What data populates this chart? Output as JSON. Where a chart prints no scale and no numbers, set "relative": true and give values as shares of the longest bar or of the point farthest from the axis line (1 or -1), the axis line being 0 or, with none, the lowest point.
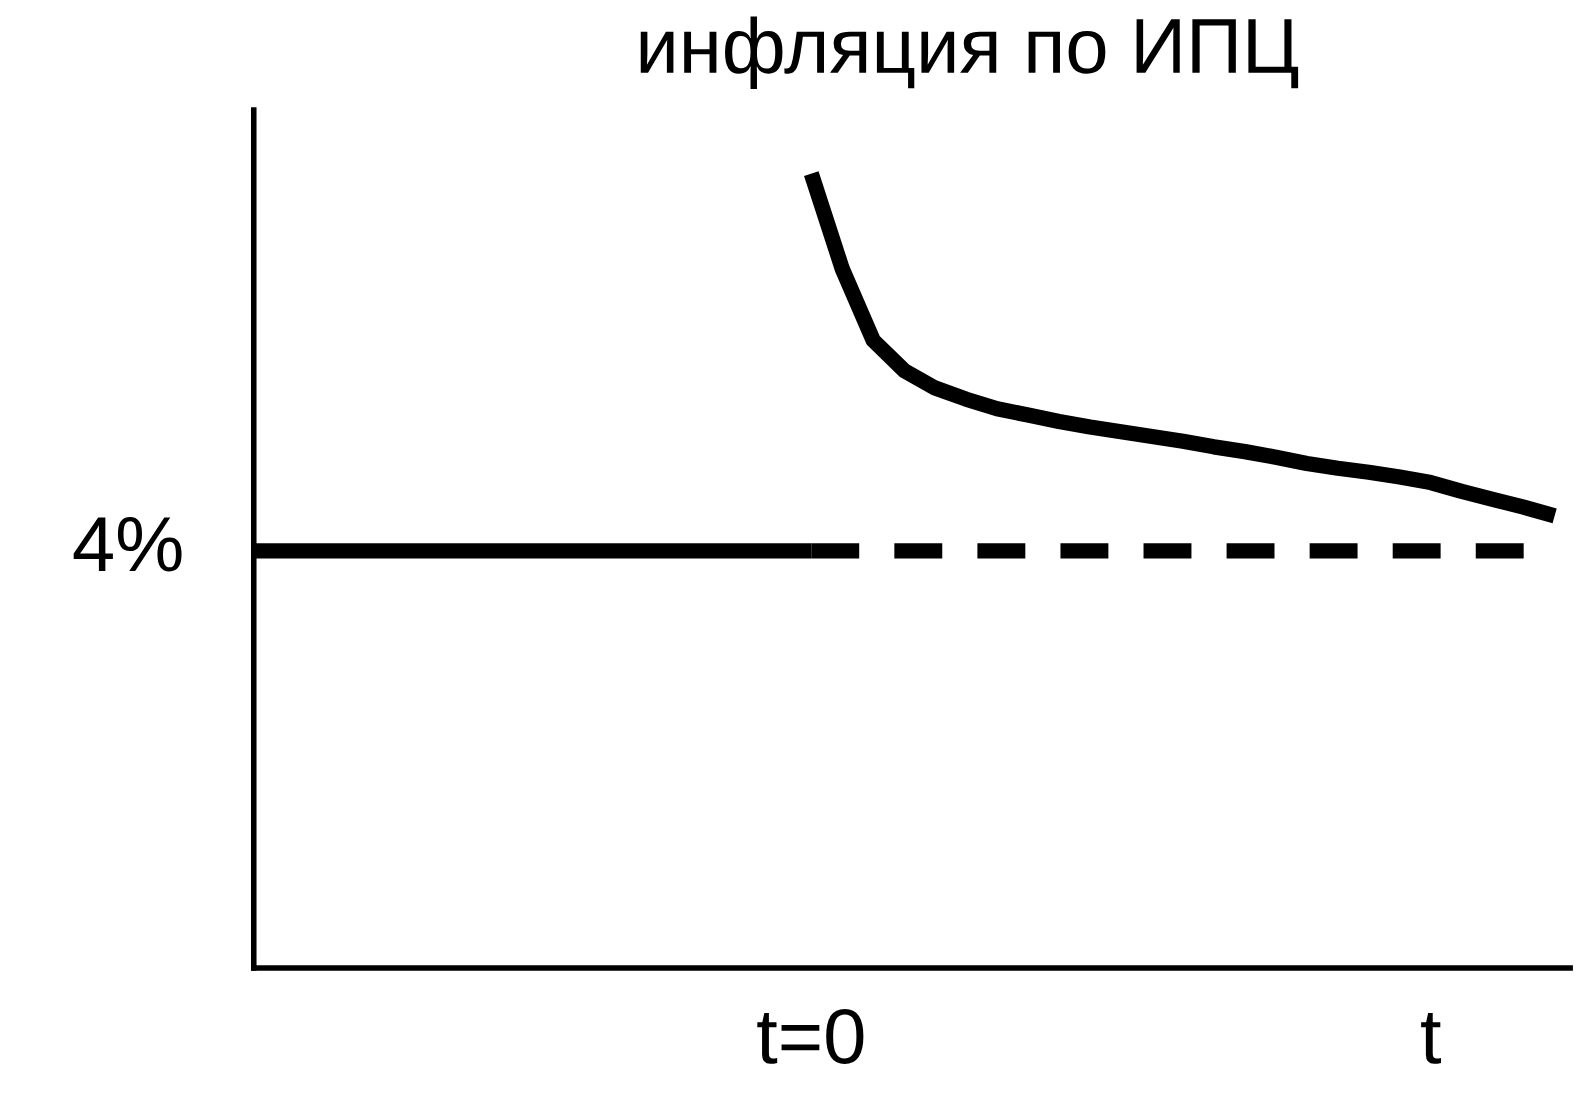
{
  "chart_data": {
    "type": "line",
    "title": "инфляция по ИПЦ",
    "relative": true,
    "categories": [
      null,
      null,
      null,
      null,
      null,
      null,
      null,
      null,
      null,
      null,
      null,
      null,
      null,
      null,
      null,
      null,
      null,
      null,
      "t=0",
      null,
      null,
      null,
      null,
      null,
      null,
      null,
      null,
      null,
      null,
      null,
      null,
      null,
      null,
      null,
      null,
      null,
      null,
      null,
      "t",
      null,
      null,
      null,
      null
    ],
    "grid": false,
    "legend": false,
    "marker": "none",
    "series": [
      {
        "color": "#000000",
        "line_style": "solid",
        "values": [
          0.525,
          0.525,
          0.525,
          0.525,
          0.525,
          0.525,
          0.525,
          0.525,
          0.525,
          0.525,
          0.525,
          0.525,
          0.525,
          0.525,
          0.525,
          0.525,
          0.525,
          0.525,
          0.525,
          null,
          null,
          null,
          null,
          null,
          null,
          null,
          null,
          null,
          null,
          null,
          null,
          null,
          null,
          null,
          null,
          null,
          null,
          null,
          null,
          null,
          null,
          null,
          null
        ]
      },
      {
        "color": "#000000",
        "line_style": "dashed",
        "values": [
          null,
          null,
          null,
          null,
          null,
          null,
          null,
          null,
          null,
          null,
          null,
          null,
          null,
          null,
          null,
          null,
          null,
          null,
          0.525,
          0.525,
          0.525,
          0.525,
          0.525,
          0.525,
          0.525,
          0.525,
          0.525,
          0.525,
          0.525,
          0.525,
          0.525,
          0.525,
          0.525,
          0.525,
          0.525,
          0.525,
          0.525,
          0.525,
          0.525,
          0.525,
          0.525,
          0.525,
          null
        ]
      },
      {
        "color": "#000000",
        "line_style": "solid",
        "values": [
          null,
          null,
          null,
          null,
          null,
          null,
          null,
          null,
          null,
          null,
          null,
          null,
          null,
          null,
          null,
          null,
          null,
          null,
          1,
          0.88,
          0.79,
          0.752,
          0.73,
          0.716,
          0.704,
          0.696,
          0.688,
          0.681,
          0.675,
          0.669,
          0.663,
          0.656,
          0.65,
          0.643,
          0.635,
          0.629,
          0.624,
          0.618,
          0.611,
          0.6,
          0.59,
          0.58,
          0.569
        ]
      }
    ],
    "annotations": [
      "4%"
    ]
  }
}
